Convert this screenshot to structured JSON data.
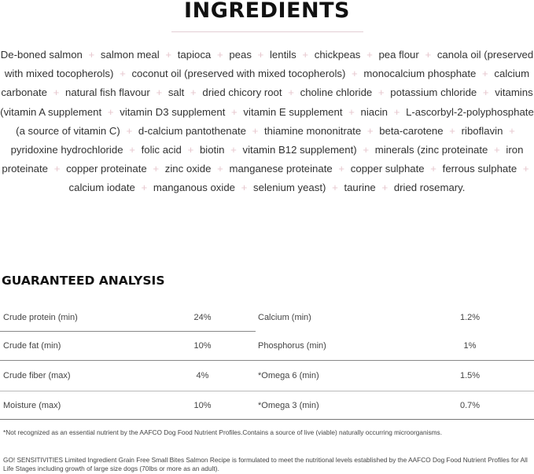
{
  "title": "INGREDIENTS",
  "ingredients": [
    "De-boned salmon",
    "salmon meal",
    "tapioca",
    "peas",
    "lentils",
    "chickpeas",
    "pea flour",
    "canola oil (preserved with mixed tocopherols)",
    "coconut oil (preserved with mixed tocopherols)",
    "monocalcium phosphate",
    "calcium carbonate",
    "natural fish flavour",
    "salt",
    "dried chicory root",
    "choline chloride",
    "potassium chloride",
    "vitamins (vitamin A supplement",
    "vitamin D3 supplement",
    "vitamin E supplement",
    "niacin",
    "L-ascorbyl-2-polyphosphate (a source of vitamin C)",
    "d-calcium pantothenate",
    "thiamine mononitrate",
    "beta-carotene",
    "riboflavin",
    "pyridoxine hydrochloride",
    "folic acid",
    "biotin",
    "vitamin B12 supplement)",
    "minerals (zinc proteinate",
    "iron proteinate",
    "copper proteinate",
    "zinc oxide",
    "manganese proteinate",
    "copper sulphate",
    "ferrous sulphate",
    "calcium iodate",
    "manganous oxide",
    "selenium yeast)",
    "taurine",
    "dried rosemary."
  ],
  "separator": "+",
  "analysis_title": "GUARANTEED ANALYSIS",
  "rows": [
    {
      "l": "Crude protein (min)",
      "lv": "24%",
      "r": "Calcium (min)",
      "rv": "1.2%"
    },
    {
      "l": "Crude fat (min)",
      "lv": "10%",
      "r": "Phosphorus (min)",
      "rv": "1%"
    },
    {
      "l": "Crude fiber (max)",
      "lv": "4%",
      "r": "*Omega 6 (min)",
      "rv": "1.5%"
    },
    {
      "l": "Moisture (max)",
      "lv": "10%",
      "r": "*Omega 3 (min)",
      "rv": "0.7%"
    }
  ],
  "footnote": "*Not recognized as an essential nutrient by the AAFCO Dog Food Nutrient Profiles.Contains a source of live (viable) naturally occurring microorganisms.",
  "statement": "GO! SENSITIVITIES Limited Ingredient Grain Free Small Bites Salmon Recipe is formulated to meet the nutritional levels established by the AAFCO Dog Food Nutrient Profiles for All Life Stages including growth of large size dogs (70lbs or more as an adult).",
  "colors": {
    "separator": "#e6c6cd",
    "rule": "#e3cfd4"
  }
}
